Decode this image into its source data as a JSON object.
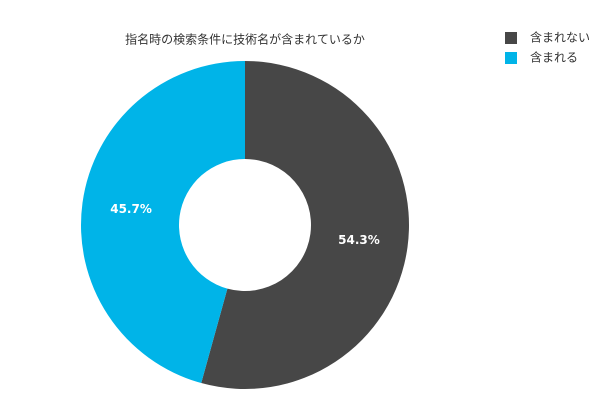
{
  "chart_data": {
    "type": "pie",
    "title": "指名時の検索条件に技術名が含まれているか",
    "categories": [
      "含まれない",
      "含まれる"
    ],
    "values": [
      54.3,
      45.7
    ],
    "value_labels": [
      "54.3%",
      "45.7%"
    ],
    "colors": [
      "#474747",
      "#00b4e8"
    ],
    "legend": "top-right"
  }
}
